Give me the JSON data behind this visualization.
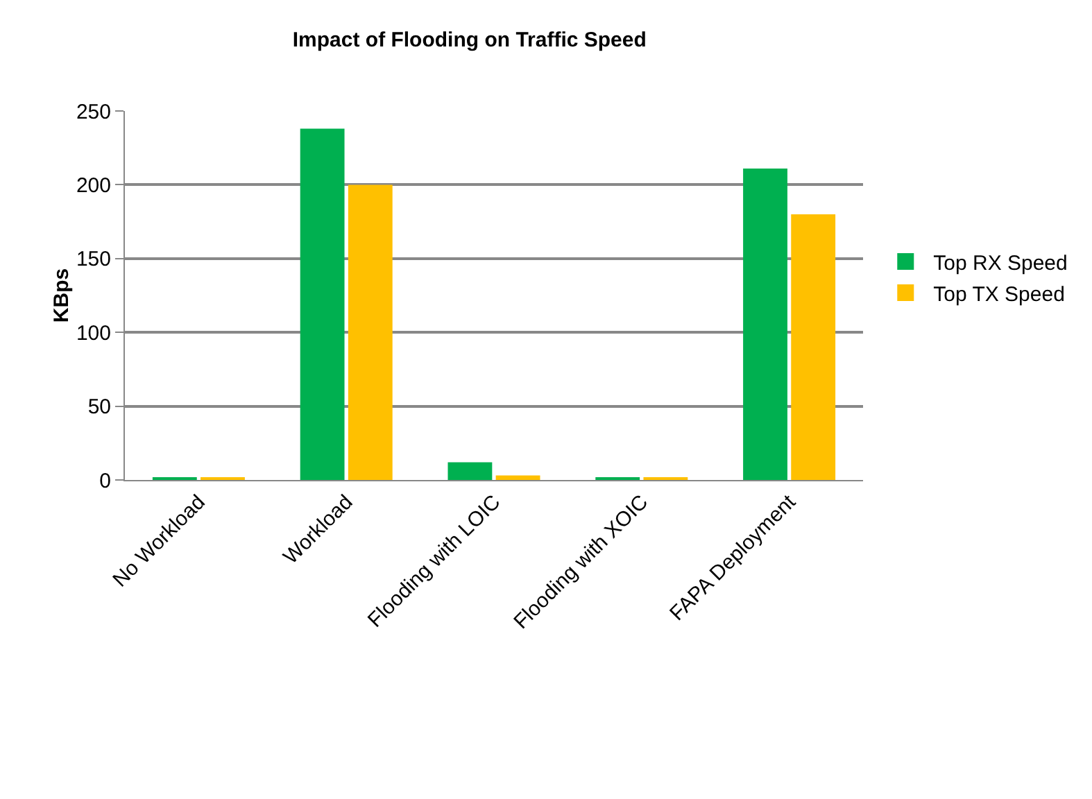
{
  "chart_data": {
    "type": "bar",
    "title": "Impact of Flooding on Traffic Speed",
    "ylabel": "KBps",
    "categories": [
      "No Workload",
      "Workload",
      "Flooding with LOIC",
      "Flooding with XOIC",
      "FAPA Deployment"
    ],
    "series": [
      {
        "name": "Top RX Speed",
        "color": "#00b050",
        "values": [
          1,
          238,
          12,
          1,
          211
        ]
      },
      {
        "name": "Top TX Speed",
        "color": "#ffc000",
        "values": [
          1,
          200,
          3,
          1,
          180
        ]
      }
    ],
    "ylim": [
      0,
      250
    ],
    "yticks": [
      0,
      50,
      100,
      150,
      200,
      250
    ],
    "grid": "y",
    "legend": "right"
  }
}
